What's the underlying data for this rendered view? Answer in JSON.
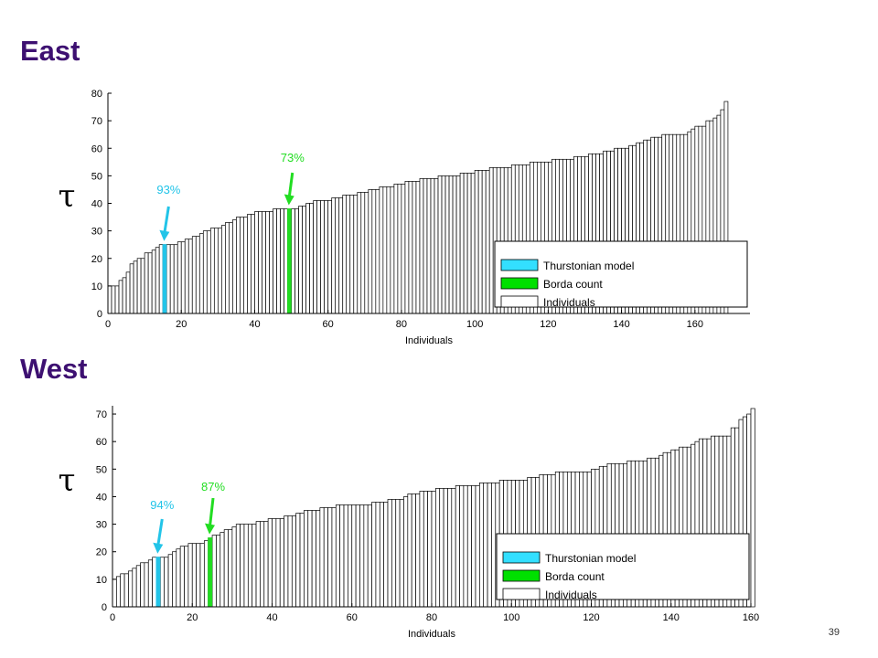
{
  "slide": {
    "number": "39"
  },
  "chart_data": [
    {
      "type": "bar",
      "panel_title": "East",
      "y_symbol": "τ",
      "xlabel": "Individuals",
      "ylabel": "τ",
      "xlim": [
        0,
        175
      ],
      "ylim": [
        0,
        80
      ],
      "x_ticks": [
        0,
        20,
        40,
        60,
        80,
        100,
        120,
        140,
        160
      ],
      "y_ticks": [
        0,
        10,
        20,
        30,
        40,
        50,
        60,
        70,
        80
      ],
      "legend": {
        "placement": "bottom-right",
        "entries": [
          {
            "label": "Thurstonian model",
            "color": "#33dfff"
          },
          {
            "label": "Borda count",
            "color": "#00e000"
          },
          {
            "label": "Individuals",
            "color": "#ffffff"
          }
        ]
      },
      "highlights": [
        {
          "name": "Thurstonian model",
          "rank": 15,
          "value": 25,
          "color": "#22c4e8",
          "annotation": "93%"
        },
        {
          "name": "Borda count",
          "rank": 49,
          "value": 38,
          "color": "#22dd22",
          "annotation": "73%"
        }
      ],
      "series": [
        {
          "name": "Individuals",
          "values": [
            10,
            10,
            10,
            12,
            13,
            15,
            18,
            19,
            20,
            20,
            22,
            22,
            23,
            24,
            25,
            25,
            25,
            25,
            25,
            26,
            26,
            27,
            27,
            28,
            28,
            29,
            30,
            30,
            31,
            31,
            31,
            32,
            33,
            33,
            34,
            35,
            35,
            35,
            36,
            36,
            37,
            37,
            37,
            37,
            37,
            38,
            38,
            38,
            38,
            38,
            38,
            38,
            39,
            39,
            40,
            40,
            41,
            41,
            41,
            41,
            41,
            42,
            42,
            42,
            43,
            43,
            43,
            43,
            44,
            44,
            44,
            45,
            45,
            45,
            46,
            46,
            46,
            46,
            47,
            47,
            47,
            48,
            48,
            48,
            48,
            49,
            49,
            49,
            49,
            49,
            50,
            50,
            50,
            50,
            50,
            50,
            51,
            51,
            51,
            51,
            52,
            52,
            52,
            52,
            53,
            53,
            53,
            53,
            53,
            53,
            54,
            54,
            54,
            54,
            54,
            55,
            55,
            55,
            55,
            55,
            55,
            56,
            56,
            56,
            56,
            56,
            56,
            57,
            57,
            57,
            57,
            58,
            58,
            58,
            58,
            59,
            59,
            59,
            60,
            60,
            60,
            60,
            61,
            61,
            62,
            62,
            63,
            63,
            64,
            64,
            64,
            65,
            65,
            65,
            65,
            65,
            65,
            65,
            66,
            67,
            68,
            68,
            68,
            70,
            70,
            71,
            72,
            74,
            77,
            0
          ]
        }
      ]
    },
    {
      "type": "bar",
      "panel_title": "West",
      "y_symbol": "τ",
      "xlabel": "Individuals",
      "ylabel": "τ",
      "xlim": [
        0,
        160
      ],
      "ylim": [
        0,
        73
      ],
      "x_ticks": [
        0,
        20,
        40,
        60,
        80,
        100,
        120,
        140,
        160
      ],
      "y_ticks": [
        0,
        10,
        20,
        30,
        40,
        50,
        60,
        70
      ],
      "legend": {
        "placement": "bottom-right",
        "entries": [
          {
            "label": "Thurstonian model",
            "color": "#33dfff"
          },
          {
            "label": "Borda count",
            "color": "#00e000"
          },
          {
            "label": "Individuals",
            "color": "#ffffff"
          }
        ]
      },
      "highlights": [
        {
          "name": "Thurstonian model",
          "rank": 11,
          "value": 18,
          "color": "#22c4e8",
          "annotation": "94%"
        },
        {
          "name": "Borda count",
          "rank": 24,
          "value": 25,
          "color": "#22dd22",
          "annotation": "87%"
        }
      ],
      "series": [
        {
          "name": "Individuals",
          "values": [
            10,
            11,
            12,
            12,
            13,
            14,
            15,
            16,
            16,
            17,
            18,
            18,
            18,
            18,
            19,
            20,
            21,
            22,
            22,
            23,
            23,
            23,
            23,
            24,
            25,
            26,
            26,
            27,
            28,
            28,
            29,
            30,
            30,
            30,
            30,
            30,
            31,
            31,
            31,
            32,
            32,
            32,
            32,
            33,
            33,
            33,
            34,
            34,
            35,
            35,
            35,
            35,
            36,
            36,
            36,
            36,
            37,
            37,
            37,
            37,
            37,
            37,
            37,
            37,
            37,
            38,
            38,
            38,
            38,
            39,
            39,
            39,
            39,
            40,
            41,
            41,
            41,
            42,
            42,
            42,
            42,
            43,
            43,
            43,
            43,
            43,
            44,
            44,
            44,
            44,
            44,
            44,
            45,
            45,
            45,
            45,
            45,
            46,
            46,
            46,
            46,
            46,
            46,
            46,
            47,
            47,
            47,
            48,
            48,
            48,
            48,
            49,
            49,
            49,
            49,
            49,
            49,
            49,
            49,
            49,
            50,
            50,
            51,
            51,
            52,
            52,
            52,
            52,
            52,
            53,
            53,
            53,
            53,
            53,
            54,
            54,
            54,
            55,
            56,
            56,
            57,
            57,
            58,
            58,
            58,
            59,
            60,
            61,
            61,
            61,
            62,
            62,
            62,
            62,
            62,
            65,
            65,
            68,
            69,
            70,
            72
          ]
        }
      ]
    }
  ]
}
